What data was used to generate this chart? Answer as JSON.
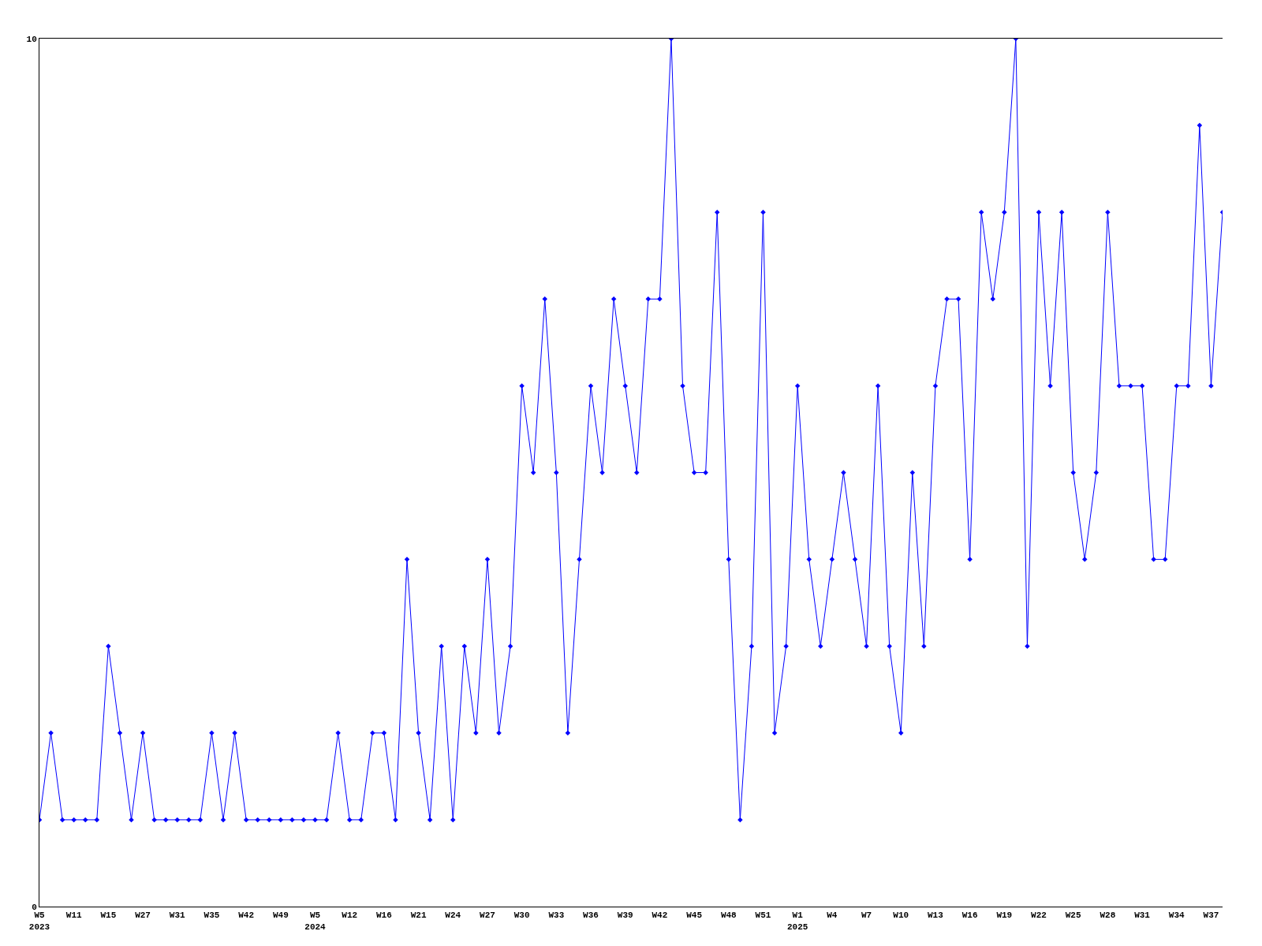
{
  "chart_data": {
    "type": "line",
    "categories": [
      "W5\n2023",
      null,
      null,
      "W11",
      null,
      null,
      "W15",
      null,
      null,
      "W27",
      null,
      null,
      "W31",
      null,
      null,
      "W35",
      null,
      null,
      "W42",
      null,
      null,
      "W49",
      null,
      null,
      "W5\n2024",
      null,
      null,
      "W12",
      null,
      null,
      "W16",
      null,
      null,
      "W21",
      null,
      null,
      "W24",
      null,
      null,
      "W27",
      null,
      null,
      "W30",
      null,
      null,
      "W33",
      null,
      null,
      "W36",
      null,
      null,
      "W39",
      null,
      null,
      "W42",
      null,
      null,
      "W45",
      null,
      null,
      "W48",
      null,
      null,
      "W51",
      null,
      null,
      "W1\n2025",
      null,
      null,
      "W4",
      null,
      null,
      "W7",
      null,
      null,
      "W10",
      null,
      null,
      "W13",
      null,
      null,
      "W16",
      null,
      null,
      "W19",
      null,
      null,
      "W22",
      null,
      null,
      "W25",
      null,
      null,
      "W28",
      null,
      null,
      "W31",
      null,
      null,
      "W34",
      null,
      null,
      "W37",
      null
    ],
    "series": [
      {
        "color": "#0000ff",
        "values": [
          1,
          2,
          1,
          1,
          1,
          1,
          3,
          2,
          1,
          2,
          1,
          1,
          1,
          1,
          1,
          2,
          1,
          2,
          1,
          1,
          1,
          1,
          1,
          1,
          1,
          1,
          2,
          1,
          1,
          2,
          2,
          1,
          4,
          2,
          1,
          3,
          1,
          3,
          2,
          4,
          2,
          3,
          6,
          5,
          7,
          5,
          2,
          4,
          6,
          5,
          7,
          6,
          5,
          7,
          7,
          10,
          6,
          5,
          5,
          8,
          4,
          1,
          3,
          8,
          2,
          3,
          6,
          4,
          3,
          4,
          5,
          4,
          3,
          6,
          3,
          2,
          5,
          3,
          6,
          7,
          7,
          4,
          8,
          7,
          8,
          10,
          3,
          8,
          6,
          8,
          5,
          4,
          5,
          8,
          6,
          6,
          6,
          4,
          4,
          6,
          6,
          9,
          6,
          8
        ]
      }
    ],
    "ylim": [
      0,
      10
    ],
    "yticks": [
      0,
      10
    ],
    "grid": false,
    "marker": "diamond",
    "line_style": "solid"
  }
}
